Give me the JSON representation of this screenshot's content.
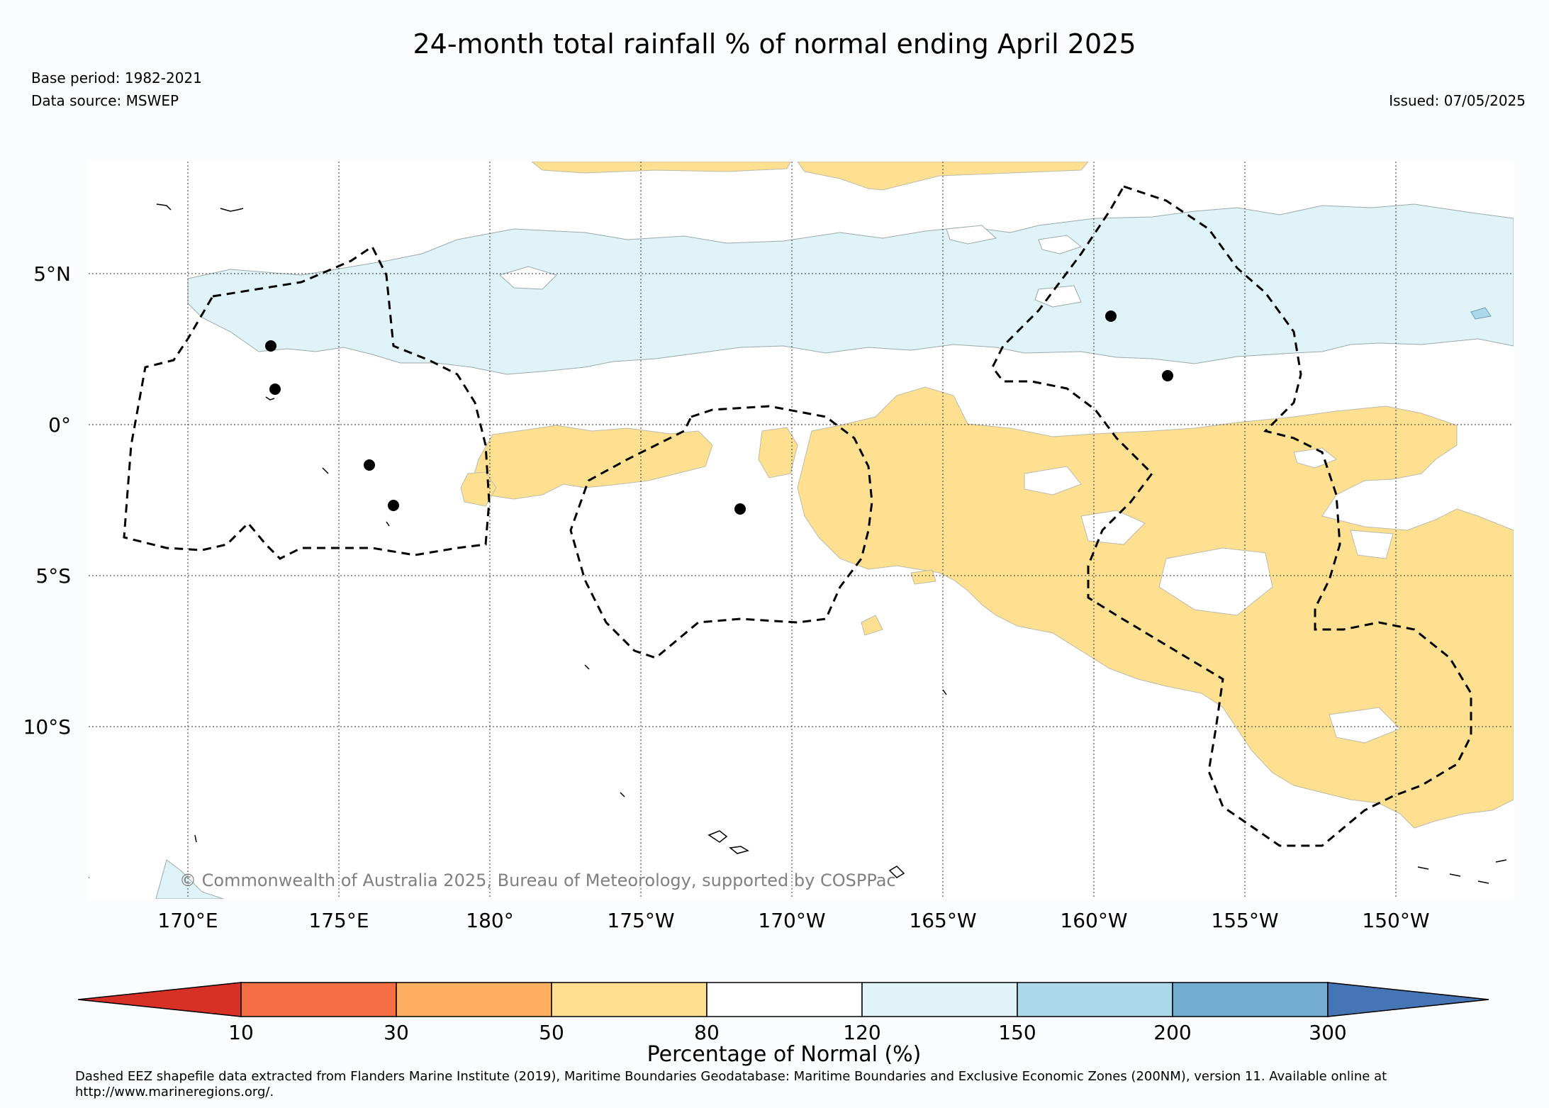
{
  "title": "24-month total rainfall % of normal ending April 2025",
  "base_period": "Base period: 1982-2021",
  "data_source": "Data source: MSWEP",
  "issued": "Issued: 07/05/2025",
  "copyright": "© Commonwealth of Australia 2025, Bureau of Meteorology, supported by COSPPac",
  "map": {
    "lat_labels": [
      "5°N",
      "0°",
      "5°S",
      "10°S"
    ],
    "lon_labels": [
      "170°E",
      "175°E",
      "180°",
      "175°W",
      "170°W",
      "165°W",
      "160°W",
      "155°W",
      "150°W"
    ],
    "gridlines": "dotted",
    "eez_style": "dashed",
    "colors": {
      "ocean": "#ffffff",
      "above_120_150": "#e0f3f8",
      "between_50_80": "#fee090",
      "above_150_200": "#abd9e9",
      "station": "#000000"
    }
  },
  "colorbar": {
    "title": "Percentage of Normal (%)",
    "tick_labels": [
      "10",
      "30",
      "50",
      "80",
      "120",
      "150",
      "200",
      "300"
    ],
    "colors": [
      "#d73027",
      "#f46d43",
      "#fdae61",
      "#fee090",
      "#ffffff",
      "#e0f3f8",
      "#abd9e9",
      "#74add1",
      "#4575b4"
    ]
  },
  "footnote": "Dashed EEZ shapefile data extracted from Flanders Marine Institute (2019), Maritime Boundaries Geodatabase: Maritime Boundaries and Exclusive Economic Zones (200NM), version 11. Available online at http://www.marineregions.org/."
}
